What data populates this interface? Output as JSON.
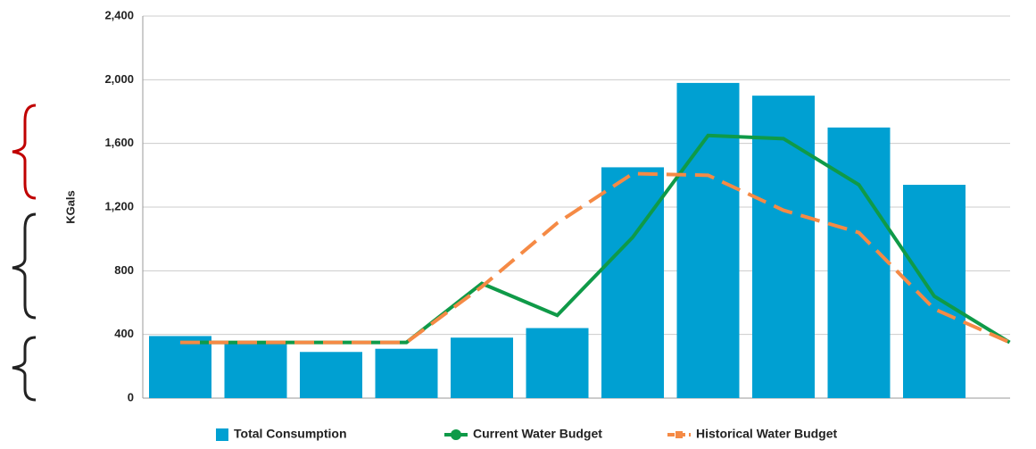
{
  "chart_data": {
    "type": "bar",
    "y_label": "KGals",
    "categories": [
      null,
      null,
      null,
      null,
      null,
      null,
      null,
      null,
      null,
      null,
      null,
      null
    ],
    "series": [
      {
        "name": "Total Consumption",
        "type": "bar",
        "color": "#00a0d2",
        "values": [
          390,
          350,
          290,
          310,
          380,
          440,
          1450,
          1980,
          1900,
          1700,
          1340,
          null
        ]
      },
      {
        "name": "Current Water Budget",
        "type": "line",
        "color": "#0f9a48",
        "values": [
          350,
          350,
          350,
          350,
          720,
          520,
          1010,
          1650,
          1630,
          1340,
          640,
          350
        ]
      },
      {
        "name": "Historical Water Budget",
        "type": "line",
        "dashed": true,
        "color": "#f58a45",
        "values": [
          350,
          350,
          350,
          350,
          700,
          1100,
          1410,
          1400,
          1180,
          1040,
          560,
          350
        ]
      }
    ],
    "ylim": [
      0,
      2400
    ],
    "yticks": [
      0,
      400,
      800,
      {
        "value": 1200,
        "label": "1,200"
      },
      {
        "value": 1600,
        "label": "1,600"
      },
      {
        "value": 2000,
        "label": "2,000"
      },
      {
        "value": 2400,
        "label": "2,400"
      }
    ],
    "grid": true,
    "legend": "bottom"
  }
}
